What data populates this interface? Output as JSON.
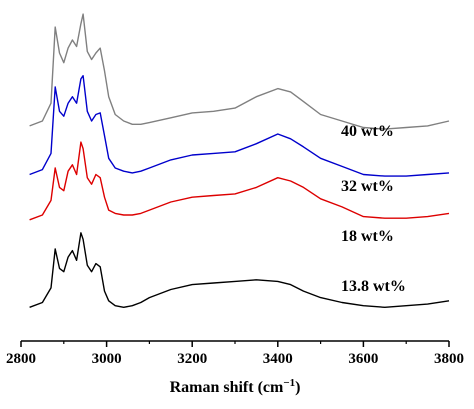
{
  "chart_data": {
    "type": "line",
    "title": "",
    "xlabel": "Raman shift (cm",
    "xlabel_sup": "−1",
    "xlabel_close": ")",
    "ylabel": "",
    "xlim": [
      2800,
      3800
    ],
    "ylim": [
      0,
      1
    ],
    "xticks": [
      "2800",
      "3000",
      "3200",
      "3400",
      "3600",
      "3800"
    ],
    "xtick_values": [
      2800,
      3000,
      3200,
      3400,
      3600,
      3800
    ],
    "grid": false,
    "y_axis_shown": false,
    "series": [
      {
        "name": "40 wt%",
        "color": "#808080",
        "x": [
          2820,
          2850,
          2870,
          2880,
          2890,
          2900,
          2910,
          2920,
          2930,
          2940,
          2945,
          2955,
          2965,
          2975,
          2985,
          2995,
          3005,
          3020,
          3040,
          3060,
          3080,
          3100,
          3150,
          3200,
          3250,
          3300,
          3350,
          3400,
          3430,
          3460,
          3500,
          3550,
          3600,
          3650,
          3700,
          3750,
          3800
        ],
        "y": [
          0.63,
          0.645,
          0.7,
          0.935,
          0.855,
          0.825,
          0.87,
          0.895,
          0.875,
          0.945,
          0.975,
          0.86,
          0.835,
          0.855,
          0.87,
          0.8,
          0.72,
          0.665,
          0.645,
          0.635,
          0.635,
          0.64,
          0.655,
          0.67,
          0.675,
          0.685,
          0.72,
          0.745,
          0.735,
          0.705,
          0.665,
          0.645,
          0.625,
          0.62,
          0.625,
          0.63,
          0.645
        ]
      },
      {
        "name": "32 wt%",
        "color": "#0000cc",
        "x": [
          2820,
          2850,
          2870,
          2880,
          2890,
          2900,
          2910,
          2920,
          2930,
          2940,
          2945,
          2955,
          2965,
          2975,
          2985,
          2995,
          3005,
          3020,
          3040,
          3060,
          3080,
          3100,
          3150,
          3200,
          3250,
          3300,
          3350,
          3400,
          3430,
          3460,
          3500,
          3550,
          3600,
          3650,
          3700,
          3750,
          3800
        ],
        "y": [
          0.48,
          0.495,
          0.545,
          0.75,
          0.675,
          0.66,
          0.7,
          0.72,
          0.7,
          0.775,
          0.785,
          0.675,
          0.645,
          0.665,
          0.67,
          0.6,
          0.53,
          0.5,
          0.49,
          0.485,
          0.49,
          0.5,
          0.525,
          0.54,
          0.545,
          0.55,
          0.575,
          0.605,
          0.59,
          0.565,
          0.53,
          0.505,
          0.48,
          0.475,
          0.475,
          0.48,
          0.485
        ]
      },
      {
        "name": "18 wt%",
        "color": "#dd0000",
        "x": [
          2820,
          2850,
          2870,
          2880,
          2890,
          2900,
          2910,
          2920,
          2930,
          2940,
          2945,
          2955,
          2965,
          2975,
          2985,
          2995,
          3005,
          3020,
          3040,
          3060,
          3080,
          3100,
          3150,
          3200,
          3250,
          3300,
          3350,
          3400,
          3430,
          3460,
          3500,
          3550,
          3600,
          3650,
          3700,
          3750,
          3800
        ],
        "y": [
          0.34,
          0.355,
          0.4,
          0.5,
          0.44,
          0.43,
          0.49,
          0.51,
          0.48,
          0.58,
          0.56,
          0.47,
          0.45,
          0.48,
          0.47,
          0.41,
          0.37,
          0.36,
          0.355,
          0.355,
          0.36,
          0.37,
          0.395,
          0.41,
          0.415,
          0.42,
          0.44,
          0.47,
          0.46,
          0.44,
          0.405,
          0.38,
          0.35,
          0.345,
          0.345,
          0.35,
          0.36
        ]
      },
      {
        "name": "13.8 wt%",
        "color": "#000000",
        "x": [
          2820,
          2850,
          2870,
          2880,
          2890,
          2900,
          2910,
          2920,
          2930,
          2940,
          2945,
          2955,
          2965,
          2975,
          2985,
          2995,
          3005,
          3020,
          3040,
          3060,
          3080,
          3100,
          3150,
          3200,
          3250,
          3300,
          3350,
          3400,
          3430,
          3460,
          3500,
          3550,
          3600,
          3650,
          3700,
          3750,
          3800
        ],
        "y": [
          0.07,
          0.085,
          0.13,
          0.25,
          0.19,
          0.18,
          0.225,
          0.245,
          0.215,
          0.3,
          0.28,
          0.2,
          0.18,
          0.205,
          0.195,
          0.12,
          0.09,
          0.075,
          0.07,
          0.075,
          0.085,
          0.1,
          0.125,
          0.14,
          0.145,
          0.15,
          0.155,
          0.15,
          0.14,
          0.12,
          0.1,
          0.085,
          0.075,
          0.07,
          0.075,
          0.08,
          0.09
        ]
      }
    ]
  }
}
